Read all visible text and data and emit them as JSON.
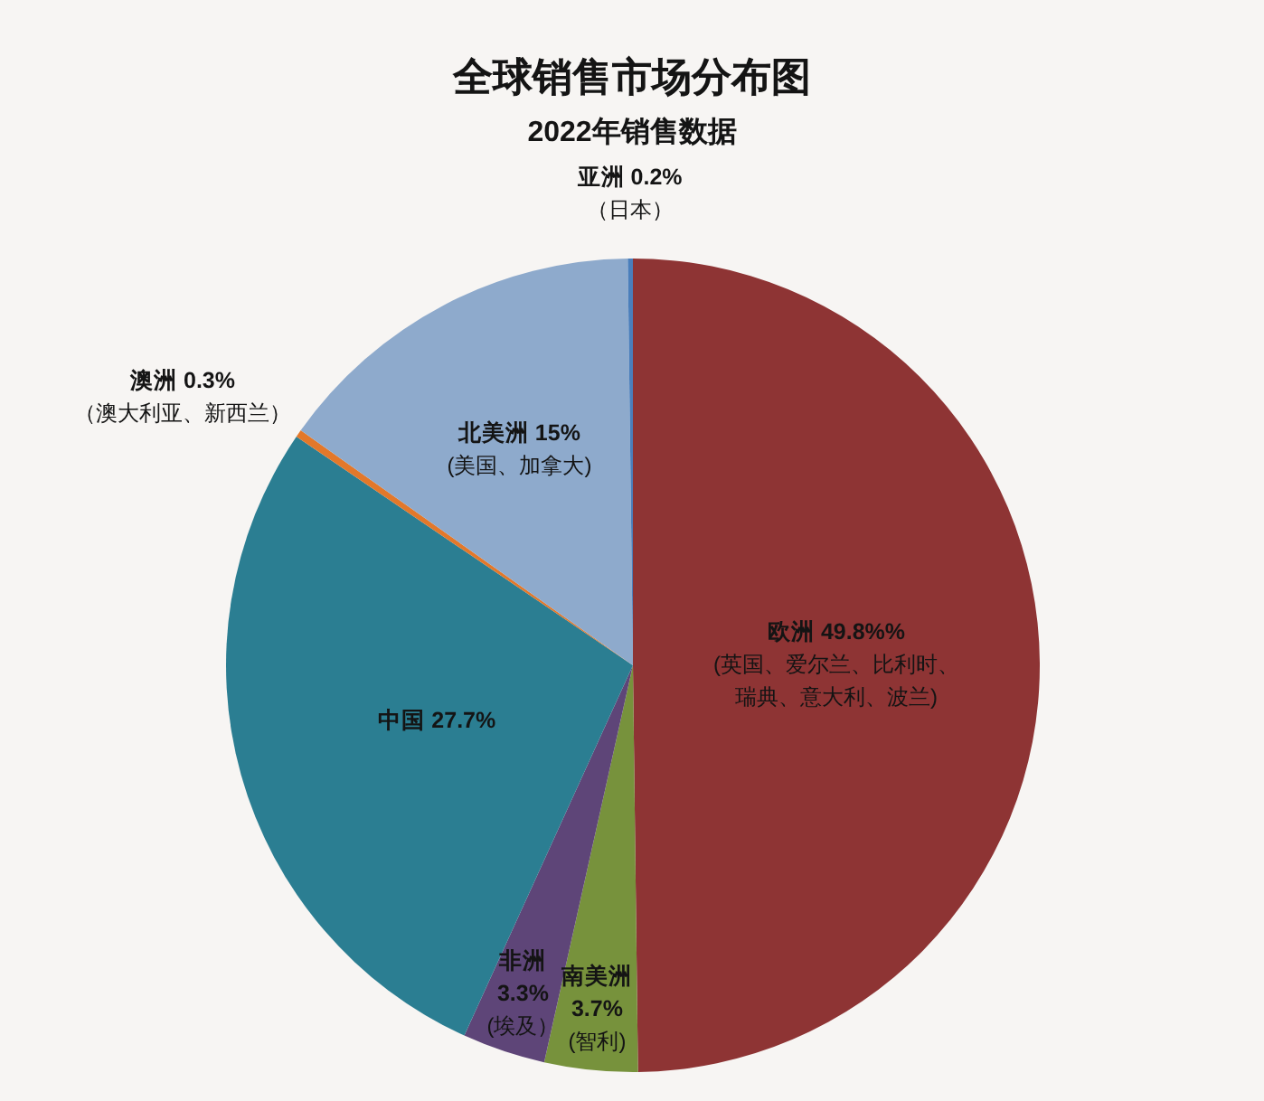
{
  "chart_data": {
    "type": "pie",
    "title": "全球销售市场分布图",
    "subtitle": "2022年销售数据",
    "categories": [
      "欧洲",
      "南美洲",
      "非洲",
      "中国",
      "澳洲",
      "北美洲",
      "亚洲"
    ],
    "values": [
      49.8,
      3.7,
      3.3,
      27.7,
      0.3,
      15,
      0.2
    ],
    "value_labels": [
      "49.8%%",
      "3.7%",
      "3.3%",
      "27.7%",
      "0.3%",
      "15%",
      "0.2%"
    ],
    "colors": [
      "#8e3434",
      "#77923c",
      "#5e4578",
      "#2b7e92",
      "#e3782a",
      "#8eaacc",
      "#4a7ebb"
    ],
    "annotations": [
      {
        "text": "(英国、爱尔兰、比利时、瑞典、意大利、波兰)",
        "x": "欧洲"
      },
      {
        "text": "(智利)",
        "x": "南美洲"
      },
      {
        "text": "(埃及）",
        "x": "非洲"
      },
      {
        "text": "（澳大利亚、新西兰）",
        "x": "澳洲"
      },
      {
        "text": "(美国、加拿大)",
        "x": "北美洲"
      },
      {
        "text": "（日本）",
        "x": "亚洲"
      }
    ]
  }
}
